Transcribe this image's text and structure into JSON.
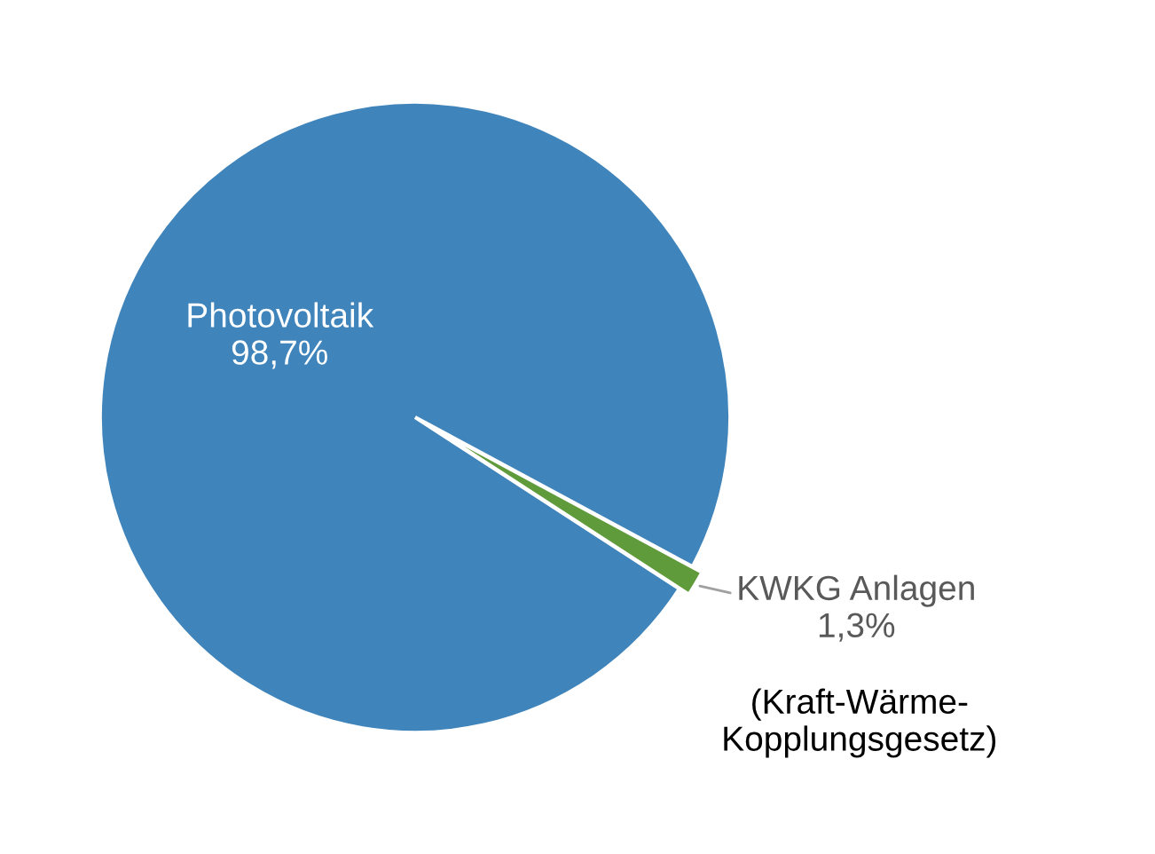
{
  "chart_data": {
    "type": "pie",
    "categories": [
      "Photovoltaik",
      "KWKG Anlagen"
    ],
    "values": [
      98.7,
      1.3
    ],
    "colors": [
      "#3f84bb",
      "#5f9b3b"
    ],
    "value_labels": [
      "98,7%",
      "1,3%"
    ],
    "annotations": [
      "(Kraft-Wärme-\nKopplungsgesetz)"
    ]
  }
}
